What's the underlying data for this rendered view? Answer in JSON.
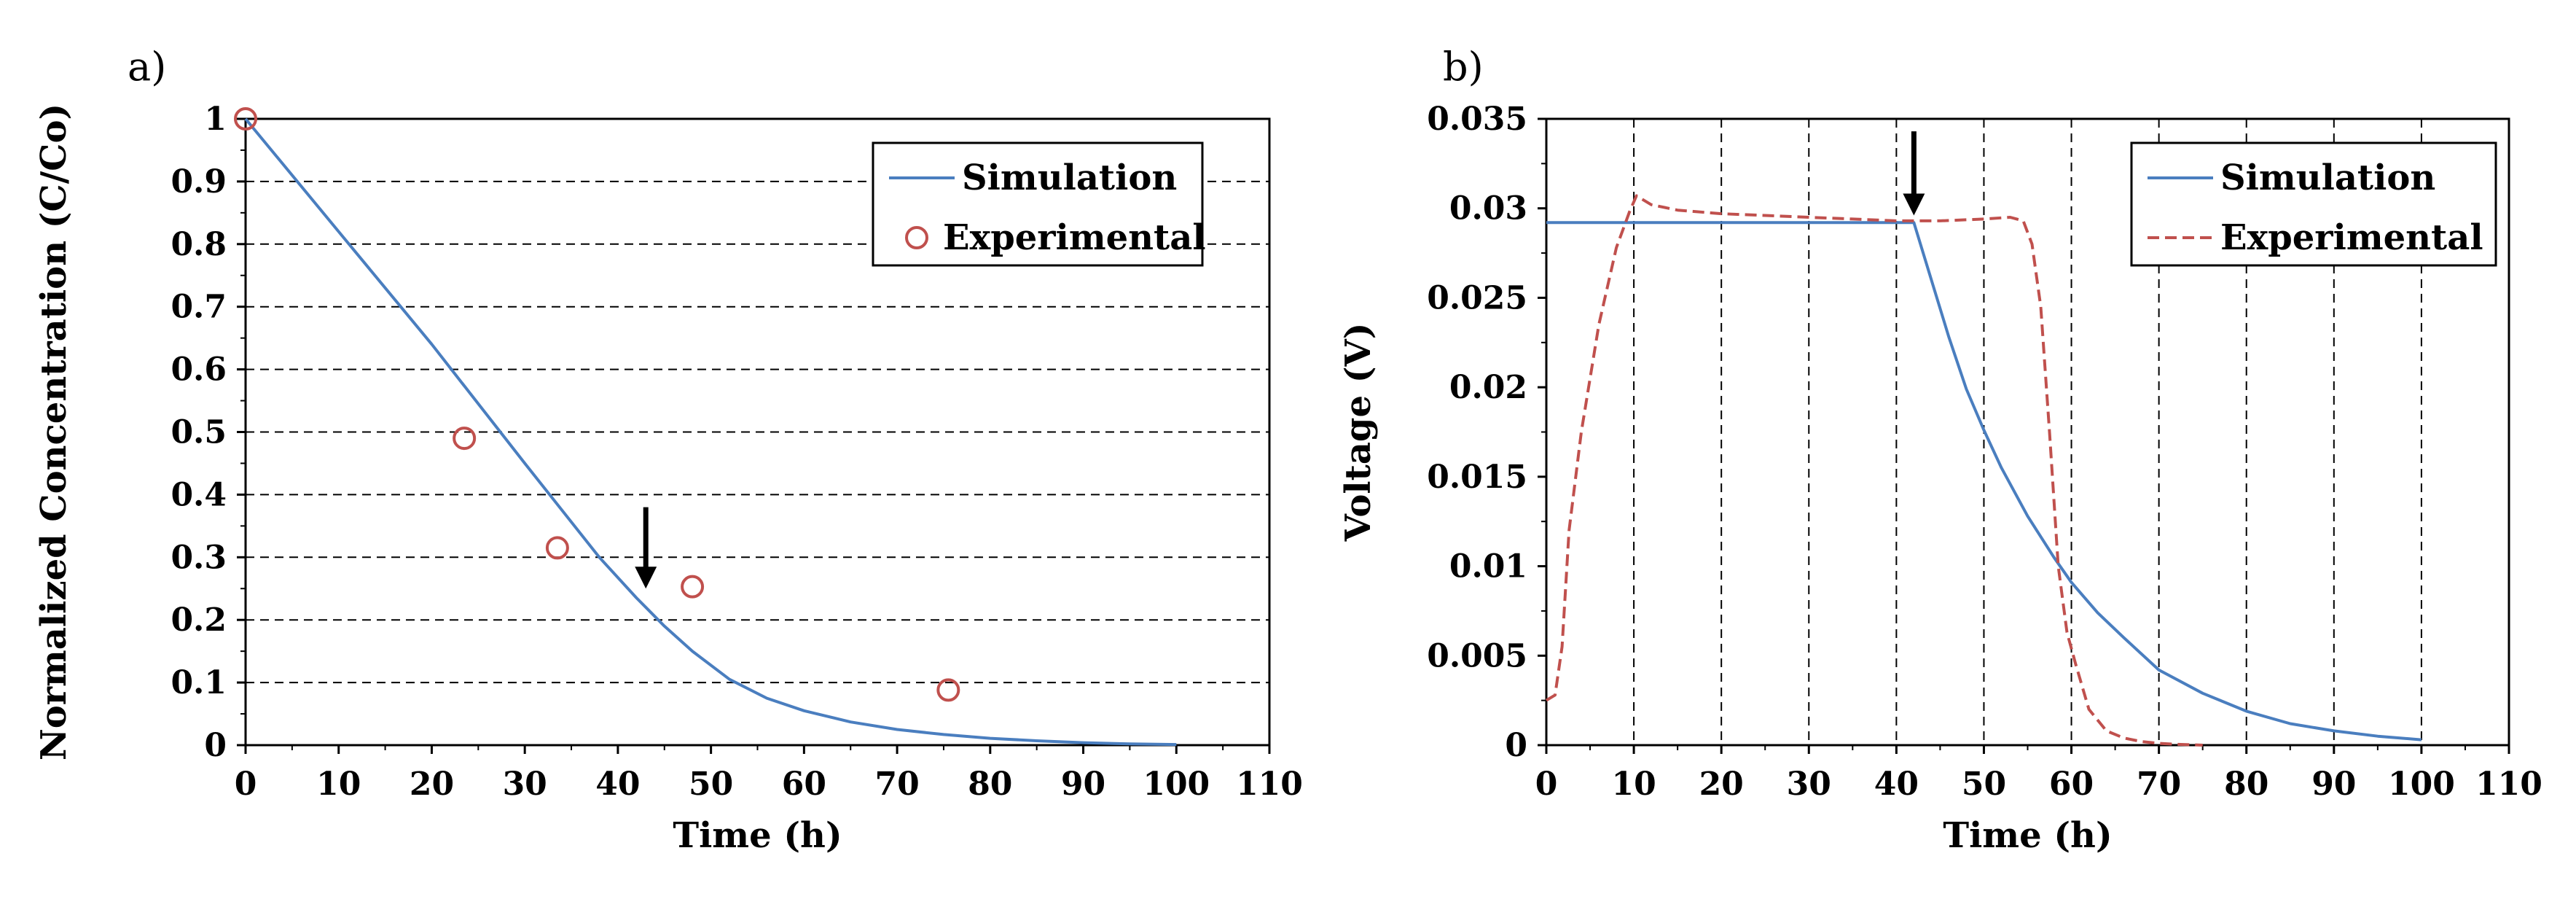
{
  "chart_data": [
    {
      "type": "line",
      "panel_label": "a)",
      "xlabel": "Time (h)",
      "ylabel": "Normalized Concentration (C/Co)",
      "xlim": [
        0,
        110
      ],
      "ylim": [
        0,
        1
      ],
      "xticks": [
        "0",
        "10",
        "20",
        "30",
        "40",
        "50",
        "60",
        "70",
        "80",
        "90",
        "100",
        "110"
      ],
      "yticks": [
        "0",
        "0.1",
        "0.2",
        "0.3",
        "0.4",
        "0.5",
        "0.6",
        "0.7",
        "0.8",
        "0.9",
        "1"
      ],
      "grid": "horizontal dashed",
      "legend_position": "top-right",
      "series": [
        {
          "name": "Simulation",
          "style": "line",
          "color": "#4a7ebf",
          "x": [
            0,
            10,
            20,
            30,
            38,
            42,
            45,
            48,
            52,
            56,
            60,
            65,
            70,
            75,
            80,
            85,
            90,
            95,
            100
          ],
          "y": [
            1.0,
            0.82,
            0.64,
            0.45,
            0.3,
            0.235,
            0.19,
            0.15,
            0.105,
            0.075,
            0.055,
            0.037,
            0.025,
            0.017,
            0.011,
            0.007,
            0.004,
            0.002,
            0.001
          ]
        },
        {
          "name": "Experimental",
          "style": "marker",
          "marker": "open-circle",
          "color": "#c0504d",
          "x": [
            0,
            23.5,
            33.5,
            48,
            75.5
          ],
          "y": [
            1.0,
            0.49,
            0.315,
            0.253,
            0.088
          ]
        }
      ],
      "annotations": [
        {
          "type": "arrow",
          "x": 43,
          "y_from": 0.38,
          "y_to": 0.25
        }
      ]
    },
    {
      "type": "line",
      "panel_label": "b)",
      "xlabel": "Time (h)",
      "ylabel": "Voltage (V)",
      "xlim": [
        0,
        110
      ],
      "ylim": [
        0,
        0.035
      ],
      "xticks": [
        "0",
        "10",
        "20",
        "30",
        "40",
        "50",
        "60",
        "70",
        "80",
        "90",
        "100",
        "110"
      ],
      "yticks": [
        "0",
        "0.005",
        "0.01",
        "0.015",
        "0.02",
        "0.025",
        "0.03",
        "0.035"
      ],
      "grid": "vertical dashed",
      "legend_position": "top-right",
      "series": [
        {
          "name": "Simulation",
          "style": "line",
          "color": "#4a7ebf",
          "x": [
            0,
            10,
            20,
            30,
            40,
            42,
            44,
            46,
            48,
            50,
            52,
            55,
            58,
            60,
            63,
            66,
            70,
            75,
            80,
            85,
            90,
            95,
            100
          ],
          "y": [
            0.0292,
            0.0292,
            0.0292,
            0.0292,
            0.0292,
            0.0292,
            0.026,
            0.0228,
            0.0199,
            0.0176,
            0.0155,
            0.0128,
            0.0105,
            0.0091,
            0.0074,
            0.006,
            0.0042,
            0.0029,
            0.0019,
            0.0012,
            0.0008,
            0.0005,
            0.0003
          ]
        },
        {
          "name": "Experimental",
          "style": "dashed-line",
          "color": "#c0504d",
          "x": [
            0,
            1,
            1.8,
            2.6,
            4,
            6,
            8,
            9.5,
            10.3,
            12,
            15,
            20,
            25,
            30,
            35,
            40,
            42,
            45,
            50,
            53,
            54.5,
            55.5,
            56.5,
            57.5,
            58.5,
            59.5,
            60.5,
            62,
            64,
            66,
            68,
            70,
            72,
            75
          ],
          "y": [
            0.0025,
            0.0028,
            0.0055,
            0.012,
            0.0175,
            0.0235,
            0.0278,
            0.0298,
            0.0307,
            0.0302,
            0.0299,
            0.0297,
            0.0296,
            0.0295,
            0.0294,
            0.0293,
            0.0293,
            0.0293,
            0.0294,
            0.0295,
            0.0293,
            0.028,
            0.0245,
            0.0175,
            0.01,
            0.0063,
            0.0045,
            0.002,
            0.0008,
            0.0004,
            0.0002,
            0.0001,
            5e-05,
            0.0
          ]
        }
      ],
      "annotations": [
        {
          "type": "arrow",
          "x": 42,
          "y_from": 0.0343,
          "y_to": 0.0296
        }
      ]
    }
  ]
}
